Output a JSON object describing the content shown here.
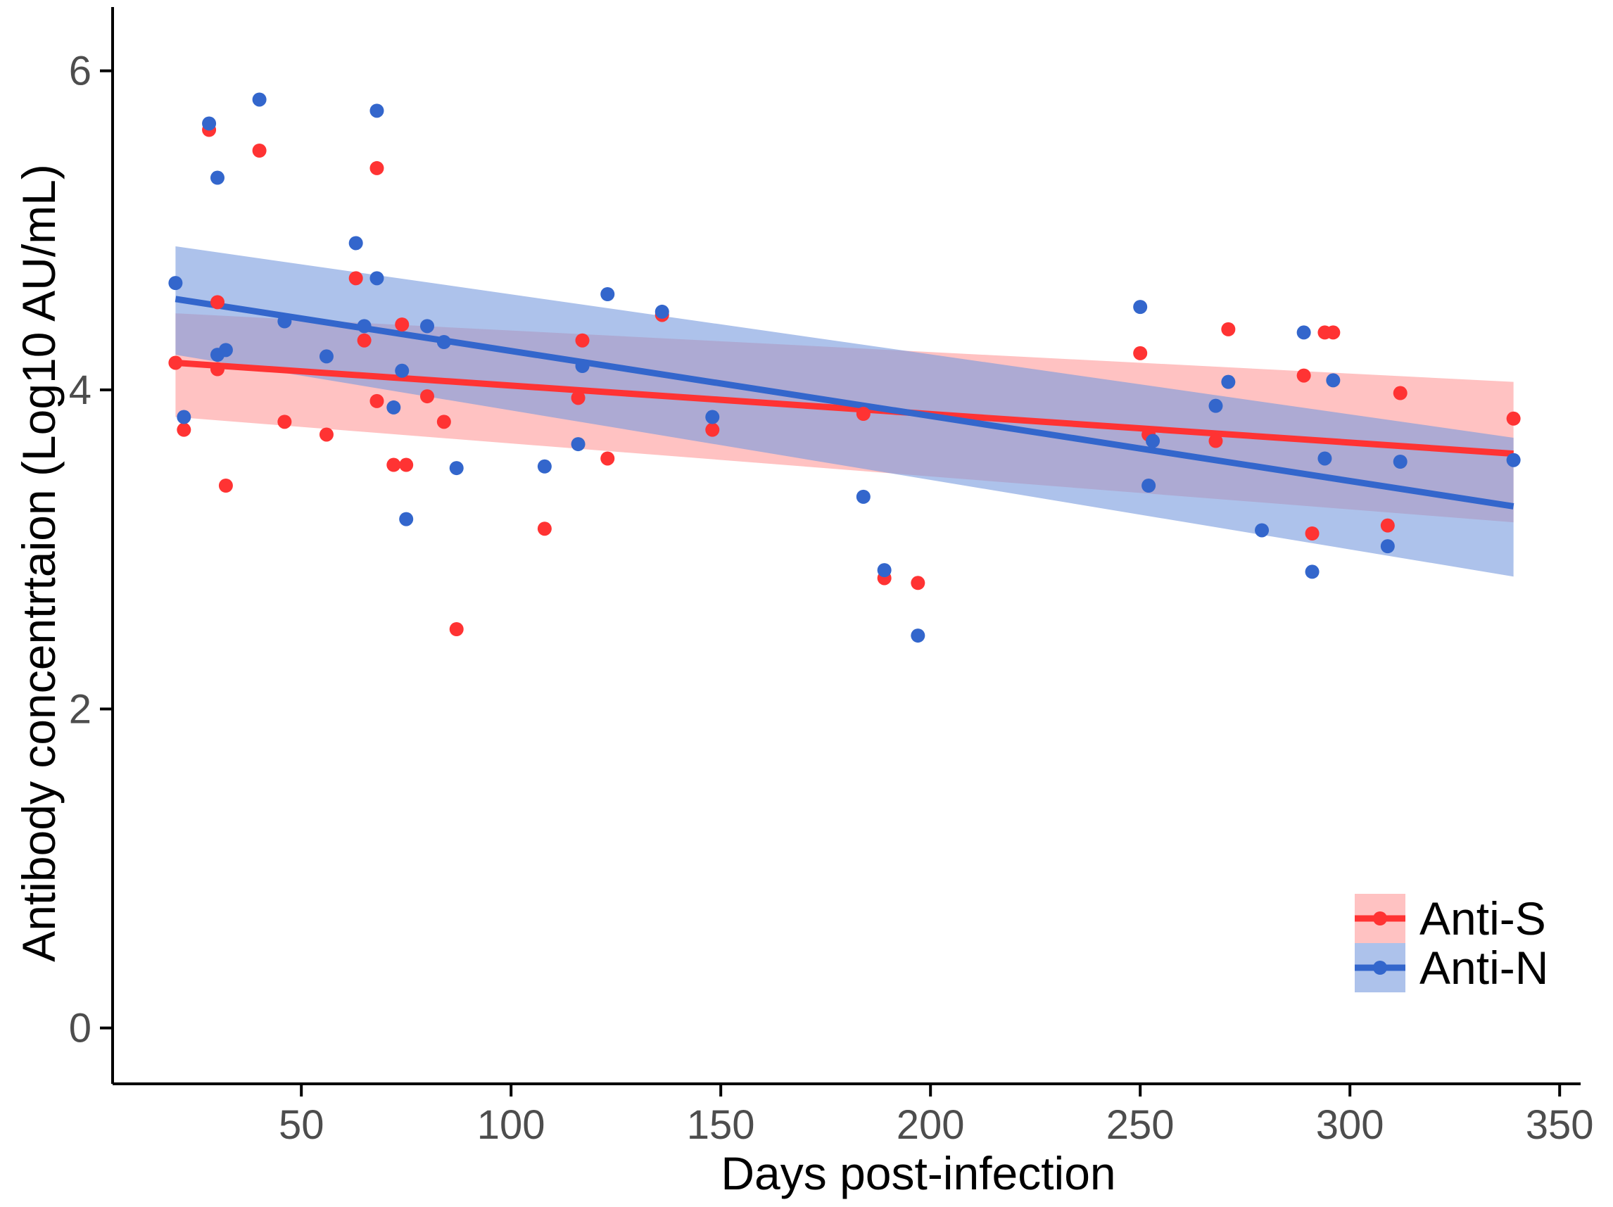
{
  "chart_data": {
    "type": "scatter",
    "title": "",
    "xlabel": "Days post-infection",
    "ylabel": "Antibody concentrtaion (Log10 AU/mL)",
    "xlim": [
      5,
      355
    ],
    "ylim": [
      -0.35,
      6.4
    ],
    "xticks": [
      50,
      100,
      150,
      200,
      250,
      300,
      350
    ],
    "xtick_labels": [
      "50",
      "100",
      "150",
      "200",
      "250",
      "300",
      "350"
    ],
    "yticks": [
      0,
      2,
      4,
      6
    ],
    "ytick_labels": [
      "0",
      "2",
      "4",
      "6"
    ],
    "grid": false,
    "legend_position": "bottom-right",
    "series": [
      {
        "name": "Anti-S",
        "color": "#FF3333",
        "band_color": "#FF9999",
        "points": [
          [
            20,
            4.17
          ],
          [
            22,
            3.75
          ],
          [
            28,
            5.63
          ],
          [
            30,
            4.13
          ],
          [
            30,
            4.55
          ],
          [
            32,
            3.4
          ],
          [
            40,
            5.5
          ],
          [
            46,
            3.8
          ],
          [
            56,
            3.72
          ],
          [
            63,
            4.7
          ],
          [
            65,
            4.31
          ],
          [
            68,
            3.93
          ],
          [
            68,
            5.39
          ],
          [
            72,
            3.53
          ],
          [
            74,
            4.41
          ],
          [
            75,
            3.53
          ],
          [
            80,
            3.96
          ],
          [
            84,
            3.8
          ],
          [
            87,
            2.5
          ],
          [
            108,
            3.13
          ],
          [
            116,
            3.95
          ],
          [
            117,
            4.31
          ],
          [
            123,
            3.57
          ],
          [
            136,
            4.47
          ],
          [
            148,
            3.75
          ],
          [
            184,
            3.85
          ],
          [
            189,
            2.82
          ],
          [
            197,
            2.79
          ],
          [
            250,
            4.23
          ],
          [
            252,
            3.72
          ],
          [
            268,
            3.68
          ],
          [
            271,
            4.38
          ],
          [
            289,
            4.09
          ],
          [
            291,
            3.1
          ],
          [
            294,
            4.36
          ],
          [
            296,
            4.36
          ],
          [
            309,
            3.15
          ],
          [
            312,
            3.98
          ],
          [
            339,
            3.82
          ]
        ],
        "fit": {
          "x": [
            20,
            339
          ],
          "y": [
            4.17,
            3.6
          ]
        },
        "ci": {
          "x": [
            20,
            339
          ],
          "lower": [
            3.83,
            3.17
          ],
          "upper": [
            4.48,
            4.05
          ]
        }
      },
      {
        "name": "Anti-N",
        "color": "#3366CC",
        "band_color": "#7799DD",
        "points": [
          [
            20,
            4.67
          ],
          [
            22,
            3.83
          ],
          [
            28,
            5.67
          ],
          [
            30,
            5.33
          ],
          [
            30,
            4.22
          ],
          [
            32,
            4.25
          ],
          [
            40,
            5.82
          ],
          [
            46,
            4.43
          ],
          [
            56,
            4.21
          ],
          [
            63,
            4.92
          ],
          [
            65,
            4.4
          ],
          [
            68,
            4.7
          ],
          [
            68,
            5.75
          ],
          [
            72,
            3.89
          ],
          [
            74,
            4.12
          ],
          [
            75,
            3.19
          ],
          [
            80,
            4.4
          ],
          [
            84,
            4.3
          ],
          [
            87,
            3.51
          ],
          [
            108,
            3.52
          ],
          [
            116,
            3.66
          ],
          [
            117,
            4.15
          ],
          [
            123,
            4.6
          ],
          [
            136,
            4.49
          ],
          [
            148,
            3.83
          ],
          [
            184,
            3.33
          ],
          [
            189,
            2.87
          ],
          [
            197,
            2.46
          ],
          [
            250,
            4.52
          ],
          [
            252,
            3.4
          ],
          [
            253,
            3.68
          ],
          [
            268,
            3.9
          ],
          [
            271,
            4.05
          ],
          [
            279,
            3.12
          ],
          [
            289,
            4.36
          ],
          [
            291,
            2.86
          ],
          [
            294,
            3.57
          ],
          [
            296,
            4.06
          ],
          [
            309,
            3.02
          ],
          [
            312,
            3.55
          ],
          [
            339,
            3.56
          ]
        ],
        "fit": {
          "x": [
            20,
            339
          ],
          "y": [
            4.57,
            3.27
          ]
        },
        "ci": {
          "x": [
            20,
            339
          ],
          "lower": [
            4.22,
            2.83
          ],
          "upper": [
            4.9,
            3.7
          ]
        }
      }
    ]
  }
}
